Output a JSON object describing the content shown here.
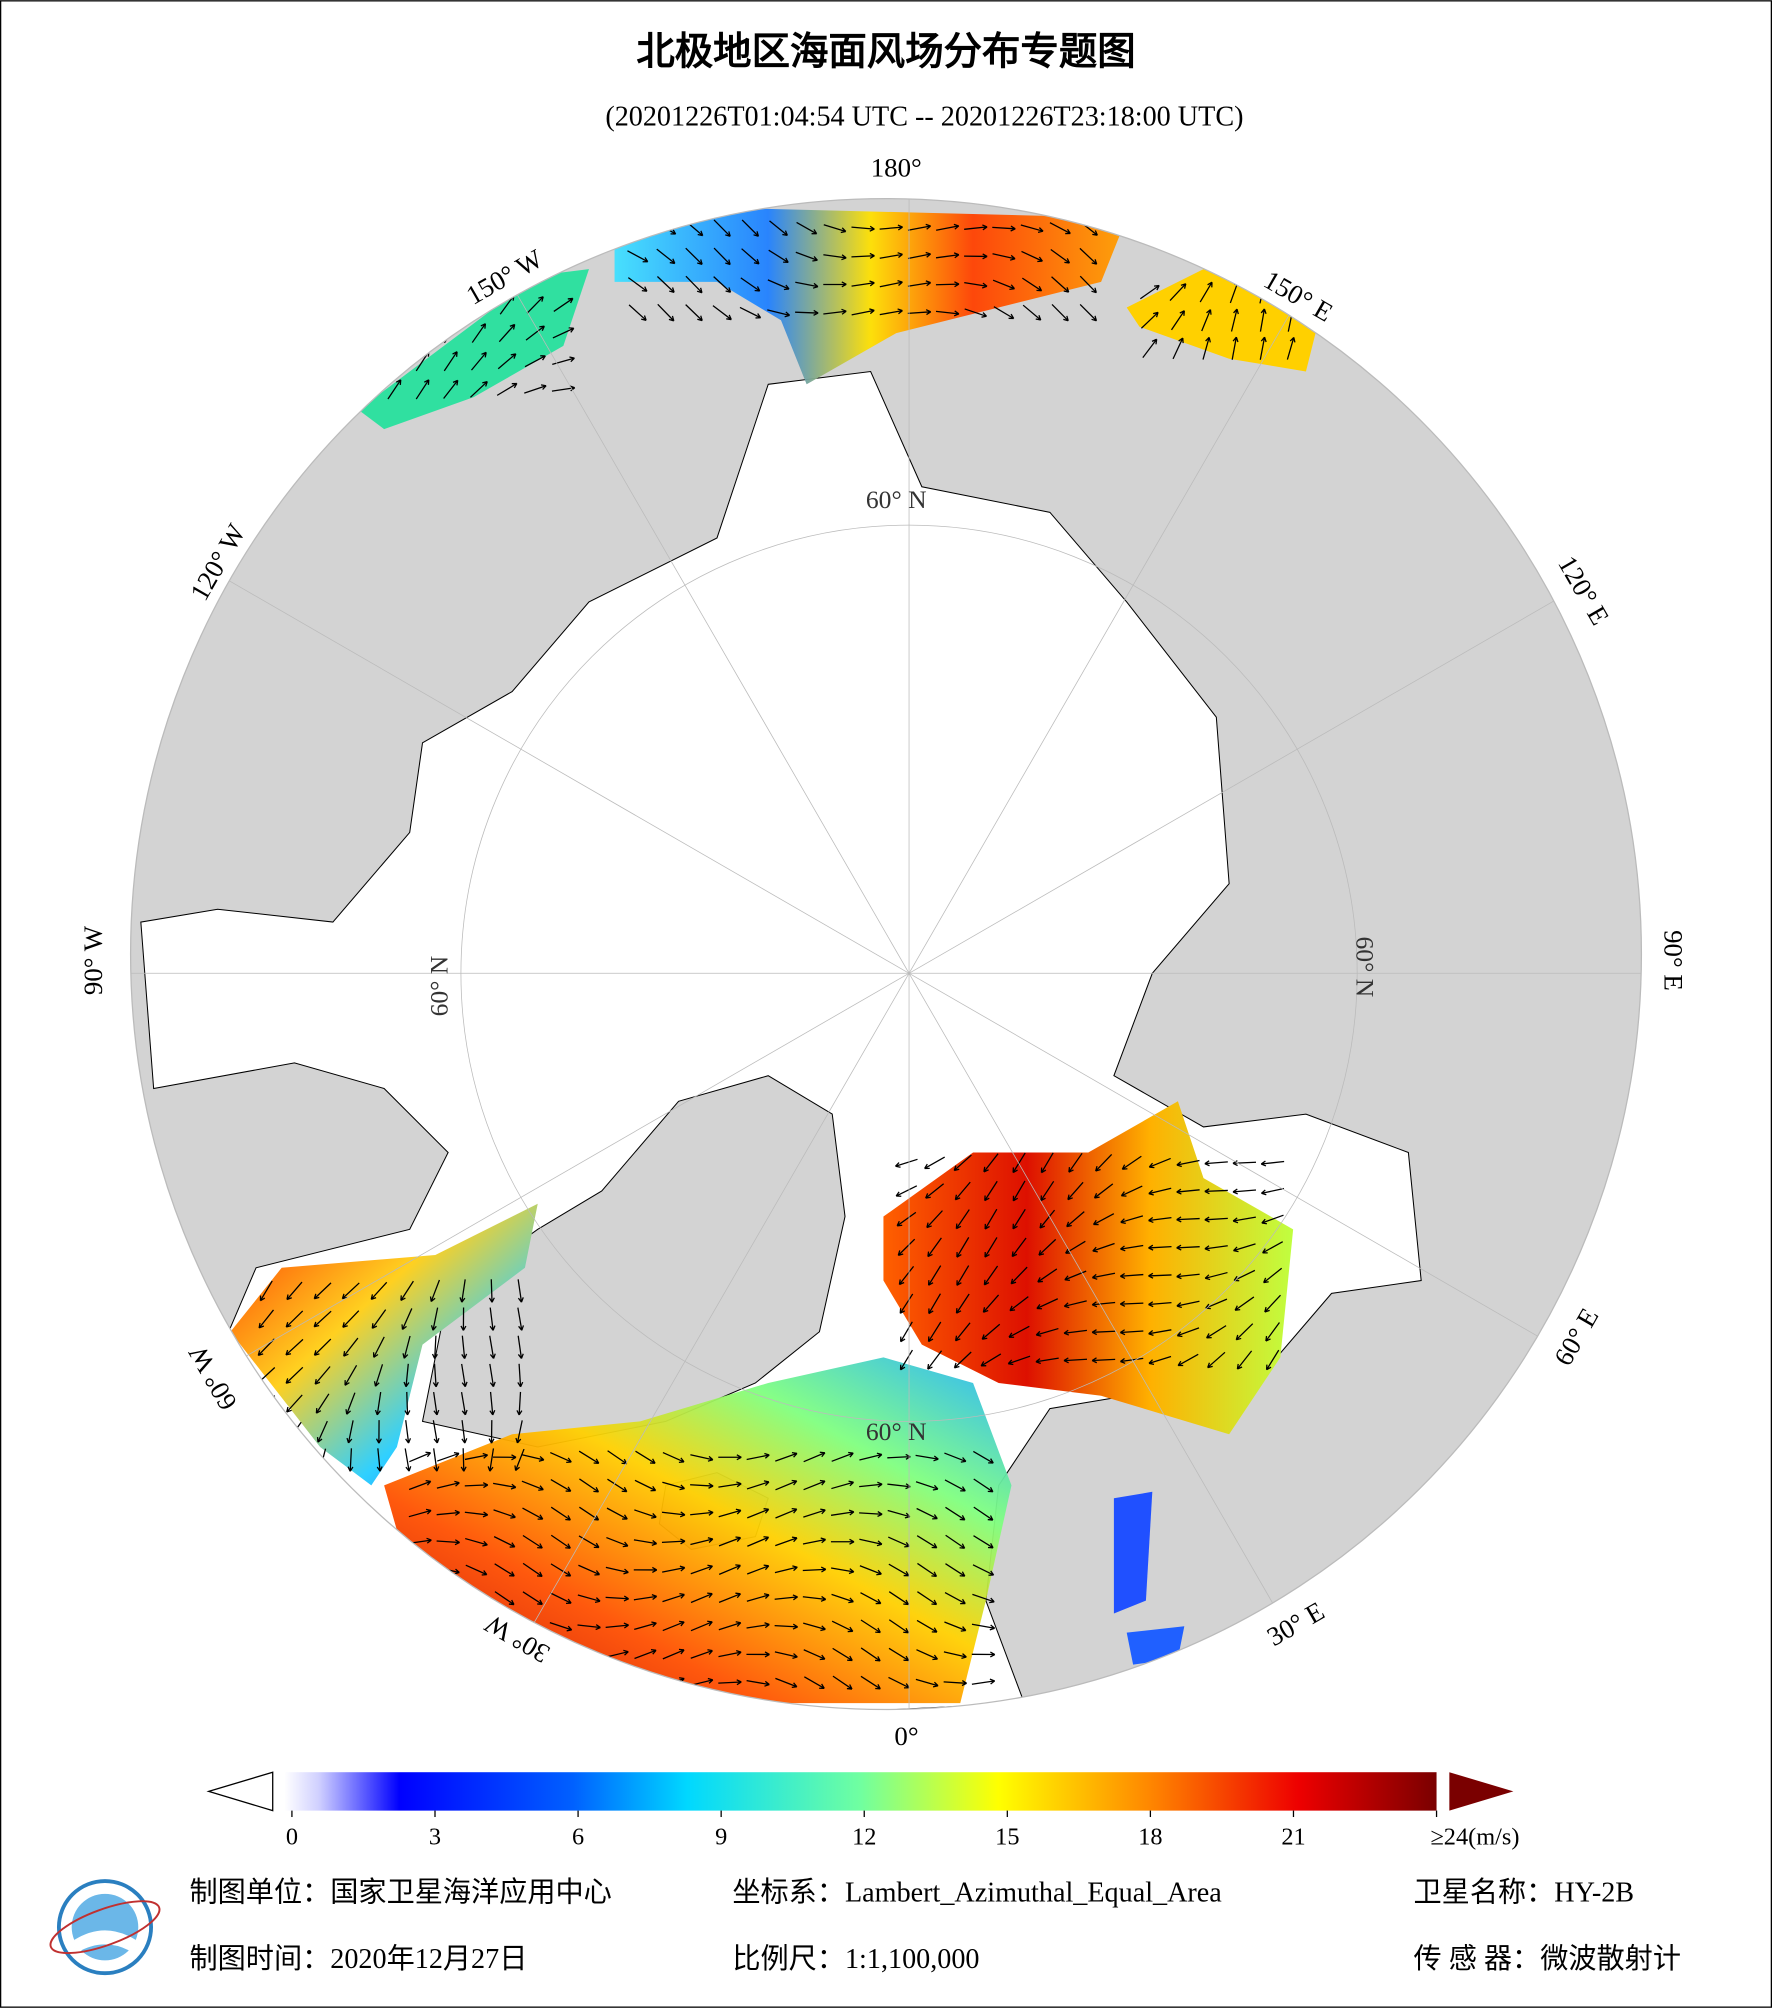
{
  "title": "北极地区海面风场分布专题图",
  "subtitle": "(20201226T01:04:54 UTC -- 20201226T23:18:00 UTC)",
  "graticule_labels": [
    "180°",
    "150° W",
    "120° W",
    "90° W",
    "60° W",
    "30° W",
    "0°",
    "30° E",
    "60° E",
    "90° E",
    "120° E",
    "150° E",
    "60° N",
    "60° N",
    "60° N",
    "60° N"
  ],
  "colorbar": {
    "lim": [
      0,
      24
    ],
    "ticks": [
      0,
      3,
      6,
      9,
      12,
      15,
      18,
      21,
      {
        "value": 24,
        "label": "≥24(m/s)"
      }
    ]
  },
  "footer": {
    "unit": "制图单位：国家卫星海洋应用中心",
    "coords": "坐标系：Lambert_Azimuthal_Equal_Area",
    "satellite": "卫星名称：HY-2B",
    "date": "制图时间：2020年12月27日",
    "scale": "比例尺：1:1,100,000",
    "sensor": "传 感 器：微波散射计"
  }
}
